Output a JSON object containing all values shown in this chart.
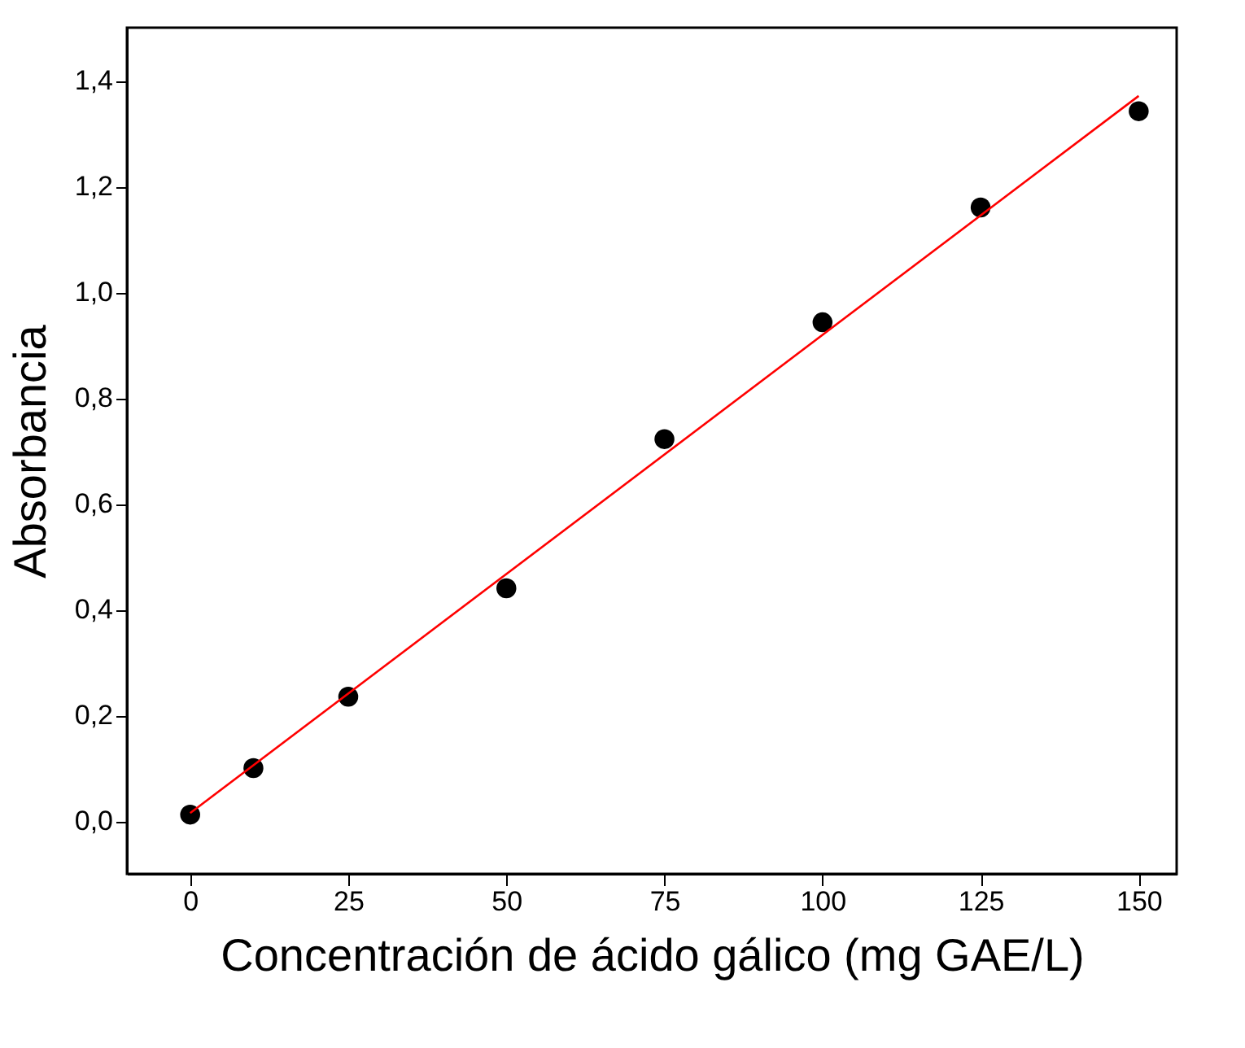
{
  "chart_data": {
    "type": "scatter",
    "xlabel": "Concentración de ácido gálico (mg GAE/L)",
    "ylabel": "Absorbancia",
    "x": [
      0,
      10,
      25,
      50,
      75,
      100,
      125,
      150
    ],
    "series": [
      {
        "color": "#000000",
        "marker": "circle",
        "values": [
          0.012,
          0.1,
          0.235,
          0.44,
          0.722,
          0.943,
          1.16,
          1.342
        ]
      },
      {
        "type": "line",
        "color": "#ff0000",
        "x": [
          0,
          150
        ],
        "values": [
          0.015,
          1.371
        ],
        "line_style": "solid"
      }
    ],
    "xlim": [
      -10,
      156
    ],
    "ylim": [
      -0.1,
      1.5
    ],
    "xticks": [
      0,
      25,
      50,
      75,
      100,
      125,
      150
    ],
    "yticks": [
      {
        "value": 0,
        "label": "0,0"
      },
      {
        "value": 0.2,
        "label": "0,2"
      },
      {
        "value": 0.4,
        "label": "0,4"
      },
      {
        "value": 0.6,
        "label": "0,6"
      },
      {
        "value": 0.8,
        "label": "0,8"
      },
      {
        "value": 1.0,
        "label": "1,0"
      },
      {
        "value": 1.2,
        "label": "1,2"
      },
      {
        "value": 1.4,
        "label": "1,4"
      }
    ],
    "grid": false
  }
}
